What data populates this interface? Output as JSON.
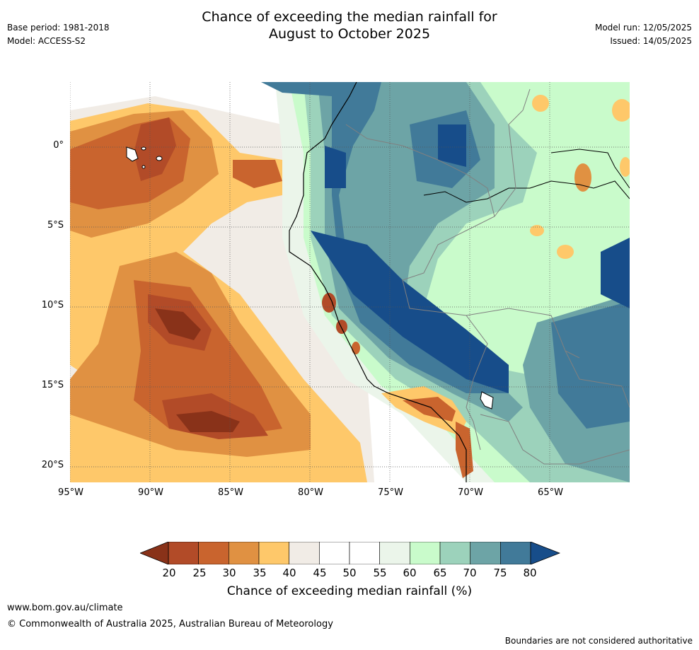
{
  "title_line1": "Chance of exceeding the median rainfall for",
  "title_line2": "August to October 2025",
  "base_period": "Base period: 1981-2018",
  "model": "Model: ACCESS-S2",
  "model_run": "Model run: 12/05/2025",
  "issued": "Issued: 14/05/2025",
  "lat_labels": [
    "0°",
    "5°S",
    "10°S",
    "15°S",
    "20°S"
  ],
  "lon_labels": [
    "95°W",
    "90°W",
    "85°W",
    "80°W",
    "75°W",
    "70°W",
    "65°W"
  ],
  "colorbar": {
    "label": "Chance of exceeding median rainfall (%)",
    "ticks": [
      "20",
      "25",
      "30",
      "35",
      "40",
      "45",
      "50",
      "55",
      "60",
      "65",
      "70",
      "75",
      "80"
    ],
    "colors": [
      "#893219",
      "#b24b28",
      "#c9642e",
      "#e09142",
      "#fec86a",
      "#f1ece6",
      "#ffffff",
      "#ffffff",
      "#ebf5ea",
      "#c9fbcb",
      "#9cd2bb",
      "#6da4a6",
      "#417a99",
      "#174d8a"
    ]
  },
  "footer": {
    "url": "www.bom.gov.au/climate",
    "copyright": "© Commonwealth of Australia 2025, Australian Bureau of Meteorology",
    "note": "Boundaries are not considered authoritative"
  }
}
